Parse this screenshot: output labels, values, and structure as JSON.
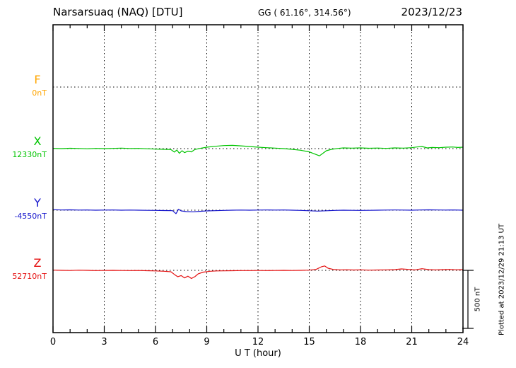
{
  "header": {
    "station": "Narsarsuaq (NAQ)  [DTU]",
    "coords": "GG ( 61.16°, 314.56°)",
    "date": "2023/12/23"
  },
  "axis": {
    "xlabel": "U T (hour)",
    "tick_hours": [
      0,
      3,
      6,
      9,
      12,
      15,
      18,
      21,
      24
    ],
    "tick_labels": [
      "0",
      "3",
      "6",
      "9",
      "12",
      "15",
      "18",
      "21",
      "24"
    ],
    "minor_tick_every_hours": 1
  },
  "scale_bar": {
    "label": "500 nT",
    "nT": 500
  },
  "plotted_note": "Plotted at 2023/12/29 21:13 UT",
  "chart_data": {
    "type": "line",
    "title": "Narsarsuaq (NAQ) [DTU] magnetogram 2023/12/23",
    "xlabel": "U T (hour)",
    "x_range": [
      0,
      24
    ],
    "grid": "vertical dotted lines every 3 hours; horizontal dotted baseline per component",
    "scale_bar_nT": 500,
    "series": [
      {
        "name": "F",
        "color": "#ffa500",
        "baseline_label": "0nT",
        "baseline_nT": 0,
        "points": []
      },
      {
        "name": "X",
        "color": "#00c400",
        "baseline_label": "12330nT",
        "baseline_nT": 12330,
        "points": [
          [
            0,
            2
          ],
          [
            0.5,
            0
          ],
          [
            1,
            3
          ],
          [
            1.5,
            1
          ],
          [
            2,
            -1
          ],
          [
            2.5,
            2
          ],
          [
            3,
            0
          ],
          [
            3.5,
            2
          ],
          [
            4,
            4
          ],
          [
            4.5,
            1
          ],
          [
            5,
            2
          ],
          [
            5.5,
            -1
          ],
          [
            6,
            -4
          ],
          [
            6.5,
            -6
          ],
          [
            6.9,
            -8
          ],
          [
            7.1,
            -30
          ],
          [
            7.25,
            -12
          ],
          [
            7.4,
            -40
          ],
          [
            7.55,
            -18
          ],
          [
            7.7,
            -35
          ],
          [
            7.9,
            -22
          ],
          [
            8.1,
            -28
          ],
          [
            8.3,
            -8
          ],
          [
            8.6,
            2
          ],
          [
            9,
            12
          ],
          [
            9.5,
            20
          ],
          [
            10,
            26
          ],
          [
            10.5,
            28
          ],
          [
            11,
            24
          ],
          [
            11.5,
            18
          ],
          [
            12,
            12
          ],
          [
            12.5,
            8
          ],
          [
            13,
            4
          ],
          [
            13.5,
            0
          ],
          [
            14,
            -6
          ],
          [
            14.5,
            -14
          ],
          [
            15,
            -28
          ],
          [
            15.3,
            -45
          ],
          [
            15.6,
            -62
          ],
          [
            15.8,
            -40
          ],
          [
            16,
            -18
          ],
          [
            16.3,
            -6
          ],
          [
            16.7,
            2
          ],
          [
            17,
            6
          ],
          [
            17.5,
            4
          ],
          [
            18,
            6
          ],
          [
            18.5,
            3
          ],
          [
            19,
            5
          ],
          [
            19.5,
            2
          ],
          [
            20,
            6
          ],
          [
            20.5,
            4
          ],
          [
            21,
            8
          ],
          [
            21.3,
            14
          ],
          [
            21.6,
            18
          ],
          [
            21.9,
            6
          ],
          [
            22.2,
            10
          ],
          [
            22.6,
            8
          ],
          [
            23,
            12
          ],
          [
            23.4,
            14
          ],
          [
            23.7,
            10
          ],
          [
            24,
            12
          ]
        ]
      },
      {
        "name": "Y",
        "color": "#1515cc",
        "baseline_label": "-4550nT",
        "baseline_nT": -4550,
        "points": [
          [
            0,
            4
          ],
          [
            0.5,
            2
          ],
          [
            1,
            3
          ],
          [
            1.5,
            1
          ],
          [
            2,
            2
          ],
          [
            2.5,
            0
          ],
          [
            3,
            1
          ],
          [
            3.5,
            2
          ],
          [
            4,
            0
          ],
          [
            4.5,
            1
          ],
          [
            5,
            0
          ],
          [
            5.5,
            -1
          ],
          [
            6,
            -2
          ],
          [
            6.5,
            -3
          ],
          [
            7,
            -4
          ],
          [
            7.2,
            -30
          ],
          [
            7.35,
            8
          ],
          [
            7.5,
            -6
          ],
          [
            7.8,
            -12
          ],
          [
            8.2,
            -14
          ],
          [
            8.6,
            -10
          ],
          [
            9,
            -6
          ],
          [
            9.5,
            -4
          ],
          [
            10,
            -2
          ],
          [
            10.5,
            0
          ],
          [
            11,
            1
          ],
          [
            11.5,
            0
          ],
          [
            12,
            1
          ],
          [
            12.5,
            2
          ],
          [
            13,
            1
          ],
          [
            13.5,
            2
          ],
          [
            14,
            0
          ],
          [
            14.5,
            -2
          ],
          [
            15,
            -5
          ],
          [
            15.5,
            -8
          ],
          [
            16,
            -5
          ],
          [
            16.5,
            -2
          ],
          [
            17,
            0
          ],
          [
            17.5,
            -1
          ],
          [
            18,
            -2
          ],
          [
            18.5,
            -1
          ],
          [
            19,
            0
          ],
          [
            19.5,
            1
          ],
          [
            20,
            2
          ],
          [
            20.5,
            1
          ],
          [
            21,
            0
          ],
          [
            21.5,
            2
          ],
          [
            22,
            3
          ],
          [
            22.5,
            2
          ],
          [
            23,
            1
          ],
          [
            23.5,
            2
          ],
          [
            24,
            0
          ]
        ]
      },
      {
        "name": "Z",
        "color": "#e51010",
        "baseline_label": "52710nT",
        "baseline_nT": 52710,
        "points": [
          [
            0,
            2
          ],
          [
            0.5,
            0
          ],
          [
            1,
            -1
          ],
          [
            1.5,
            1
          ],
          [
            2,
            0
          ],
          [
            2.5,
            -2
          ],
          [
            3,
            -1
          ],
          [
            3.5,
            0
          ],
          [
            4,
            -1
          ],
          [
            4.5,
            -2
          ],
          [
            5,
            -1
          ],
          [
            5.5,
            -3
          ],
          [
            6,
            -5
          ],
          [
            6.5,
            -8
          ],
          [
            6.9,
            -12
          ],
          [
            7.1,
            -35
          ],
          [
            7.3,
            -55
          ],
          [
            7.5,
            -45
          ],
          [
            7.7,
            -65
          ],
          [
            7.9,
            -50
          ],
          [
            8.1,
            -70
          ],
          [
            8.3,
            -55
          ],
          [
            8.5,
            -30
          ],
          [
            8.8,
            -15
          ],
          [
            9.2,
            -8
          ],
          [
            9.6,
            -5
          ],
          [
            10,
            -4
          ],
          [
            10.5,
            -3
          ],
          [
            11,
            -2
          ],
          [
            11.5,
            -2
          ],
          [
            12,
            -1
          ],
          [
            12.5,
            -2
          ],
          [
            13,
            -1
          ],
          [
            13.5,
            0
          ],
          [
            14,
            -1
          ],
          [
            14.5,
            0
          ],
          [
            15,
            2
          ],
          [
            15.4,
            8
          ],
          [
            15.7,
            30
          ],
          [
            15.9,
            38
          ],
          [
            16.1,
            18
          ],
          [
            16.4,
            8
          ],
          [
            16.8,
            4
          ],
          [
            17.2,
            5
          ],
          [
            17.6,
            3
          ],
          [
            18,
            4
          ],
          [
            18.5,
            2
          ],
          [
            19,
            3
          ],
          [
            19.5,
            4
          ],
          [
            20,
            6
          ],
          [
            20.4,
            12
          ],
          [
            20.8,
            8
          ],
          [
            21.2,
            4
          ],
          [
            21.6,
            14
          ],
          [
            22,
            6
          ],
          [
            22.4,
            4
          ],
          [
            22.8,
            6
          ],
          [
            23.2,
            8
          ],
          [
            23.6,
            5
          ],
          [
            24,
            6
          ]
        ]
      }
    ]
  }
}
